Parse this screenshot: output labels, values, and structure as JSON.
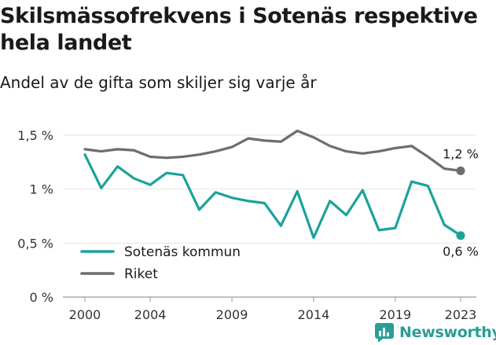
{
  "header": {
    "title": "Skilsmässofrekvens i Sotenäs respektive hela landet",
    "subtitle": "Andel av de gifta som skiljer sig varje år"
  },
  "brand": {
    "name": "Newsworthy",
    "icon": "newsworthy-logo-icon",
    "color": "#2a9d96"
  },
  "chart_data": {
    "type": "line",
    "title": "Skilsmässofrekvens i Sotenäs respektive hela landet",
    "subtitle": "Andel av de gifta som skiljer sig varje år",
    "xlabel": "",
    "ylabel": "",
    "x": [
      2000,
      2001,
      2002,
      2003,
      2004,
      2005,
      2006,
      2007,
      2008,
      2009,
      2010,
      2011,
      2012,
      2013,
      2014,
      2015,
      2016,
      2017,
      2018,
      2019,
      2020,
      2021,
      2022,
      2023
    ],
    "xticks": [
      2000,
      2004,
      2009,
      2014,
      2019,
      2023
    ],
    "xtick_labels": [
      "2000",
      "2004",
      "2009",
      "2014",
      "2019",
      "2023"
    ],
    "xlim": [
      2000,
      2023
    ],
    "ylim": [
      0,
      1.5
    ],
    "yticks": [
      0,
      0.5,
      1,
      1.5
    ],
    "ytick_labels": [
      "0 %",
      "0,5 %",
      "1 %",
      "1,5 %"
    ],
    "grid": true,
    "legend_position": "bottom-left",
    "series": [
      {
        "name": "Sotenäs kommun",
        "color": "#1aa39a",
        "values": [
          1.32,
          1.01,
          1.21,
          1.1,
          1.04,
          1.15,
          1.13,
          0.81,
          0.97,
          0.92,
          0.89,
          0.87,
          0.66,
          0.98,
          0.55,
          0.89,
          0.76,
          0.99,
          0.62,
          0.64,
          1.07,
          1.03,
          0.67,
          0.57
        ],
        "end_label": "0,6 %"
      },
      {
        "name": "Riket",
        "color": "#6d6d70",
        "values": [
          1.37,
          1.35,
          1.37,
          1.36,
          1.3,
          1.29,
          1.3,
          1.32,
          1.35,
          1.39,
          1.47,
          1.45,
          1.44,
          1.54,
          1.48,
          1.4,
          1.35,
          1.33,
          1.35,
          1.38,
          1.4,
          1.3,
          1.19,
          1.17
        ],
        "end_label": "1,2 %"
      }
    ]
  }
}
